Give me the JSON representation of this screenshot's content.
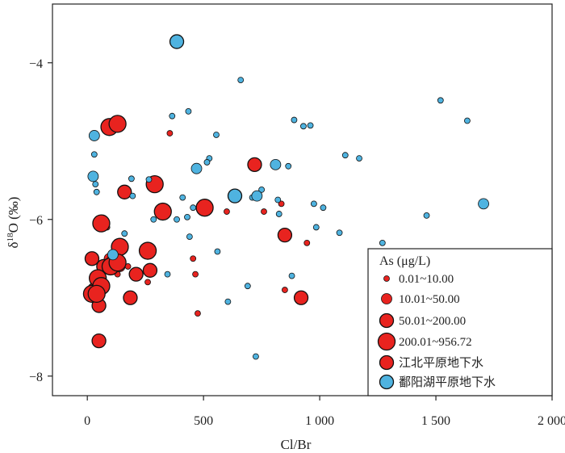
{
  "chart_data": {
    "type": "scatter",
    "xlabel": "Cl/Br",
    "ylabel": "δ18O (‰)",
    "xlim": [
      -150,
      2000
    ],
    "ylim": [
      -8.25,
      -3.25
    ],
    "y_inverted": false,
    "x_ticks": [
      0,
      500,
      1000,
      1500,
      2000
    ],
    "x_tick_labels": [
      "0",
      "500",
      "1 000",
      "1 500",
      "2 000"
    ],
    "y_ticks": [
      -4,
      -6,
      -8
    ],
    "y_tick_labels": [
      "−4",
      "−6",
      "−8"
    ],
    "grid": false,
    "legend": {
      "placement": "bottom-right",
      "title": "As (μg/L)",
      "size_classes": [
        {
          "label": "0.01~10.00",
          "size_class": 1
        },
        {
          "label": "10.01~50.00",
          "size_class": 2
        },
        {
          "label": "50.01~200.00",
          "size_class": 3
        },
        {
          "label": "200.01~956.72",
          "size_class": 4
        }
      ],
      "groups": [
        {
          "label": "江北平原地下水",
          "color": "#e8231f"
        },
        {
          "label": "鄱阳湖平原地下水",
          "color": "#4fb3e0"
        }
      ]
    },
    "series": [
      {
        "name": "江北平原地下水",
        "color": "#e8231f",
        "points": [
          [
            355,
            -4.9,
            1
          ],
          [
            475,
            -7.2,
            1
          ],
          [
            600,
            -5.9,
            1
          ],
          [
            850,
            -6.9,
            1
          ],
          [
            945,
            -6.3,
            1
          ],
          [
            465,
            -6.7,
            1
          ],
          [
            455,
            -6.5,
            1
          ],
          [
            175,
            -6.6,
            1
          ],
          [
            130,
            -6.7,
            1
          ],
          [
            760,
            -5.9,
            1
          ],
          [
            835,
            -5.8,
            1
          ],
          [
            85,
            -6.1,
            1
          ],
          [
            260,
            -6.8,
            1
          ],
          [
            95,
            -6.5,
            2
          ],
          [
            140,
            -6.6,
            2
          ],
          [
            185,
            -7.0,
            3
          ],
          [
            210,
            -6.7,
            3
          ],
          [
            50,
            -7.1,
            3
          ],
          [
            50,
            -7.55,
            3
          ],
          [
            20,
            -6.5,
            3
          ],
          [
            920,
            -7.0,
            3
          ],
          [
            850,
            -6.2,
            3
          ],
          [
            720,
            -5.3,
            3
          ],
          [
            160,
            -5.65,
            3
          ],
          [
            270,
            -6.65,
            3
          ],
          [
            70,
            -6.6,
            3
          ],
          [
            110,
            -6.55,
            3
          ],
          [
            30,
            -6.9,
            3
          ],
          [
            95,
            -4.82,
            4
          ],
          [
            130,
            -4.78,
            4
          ],
          [
            60,
            -6.05,
            4
          ],
          [
            140,
            -6.35,
            4
          ],
          [
            260,
            -6.4,
            4
          ],
          [
            290,
            -5.55,
            4
          ],
          [
            325,
            -5.9,
            4
          ],
          [
            505,
            -5.85,
            4
          ],
          [
            20,
            -6.95,
            4
          ],
          [
            45,
            -6.75,
            4
          ],
          [
            60,
            -6.85,
            4
          ],
          [
            40,
            -6.95,
            4
          ],
          [
            100,
            -6.6,
            4
          ],
          [
            130,
            -6.55,
            4
          ]
        ]
      },
      {
        "name": "鄱阳湖平原地下水",
        "color": "#4fb3e0",
        "points": [
          [
            660,
            -4.22,
            1
          ],
          [
            1520,
            -4.48,
            1
          ],
          [
            1635,
            -4.74,
            1
          ],
          [
            890,
            -4.73,
            1
          ],
          [
            930,
            -4.81,
            1
          ],
          [
            960,
            -4.8,
            1
          ],
          [
            555,
            -4.92,
            1
          ],
          [
            365,
            -4.68,
            1
          ],
          [
            435,
            -4.62,
            1
          ],
          [
            1110,
            -5.18,
            1
          ],
          [
            1170,
            -5.22,
            1
          ],
          [
            525,
            -5.22,
            1
          ],
          [
            515,
            -5.27,
            1
          ],
          [
            865,
            -5.32,
            1
          ],
          [
            190,
            -5.48,
            1
          ],
          [
            265,
            -5.49,
            1
          ],
          [
            30,
            -5.17,
            1
          ],
          [
            35,
            -5.55,
            1
          ],
          [
            40,
            -5.65,
            1
          ],
          [
            195,
            -5.7,
            1
          ],
          [
            410,
            -5.72,
            1
          ],
          [
            455,
            -5.85,
            1
          ],
          [
            710,
            -5.72,
            1
          ],
          [
            750,
            -5.62,
            1
          ],
          [
            820,
            -5.75,
            1
          ],
          [
            975,
            -5.8,
            1
          ],
          [
            1015,
            -5.85,
            1
          ],
          [
            825,
            -5.93,
            1
          ],
          [
            1460,
            -5.95,
            1
          ],
          [
            430,
            -5.97,
            1
          ],
          [
            385,
            -6.0,
            1
          ],
          [
            285,
            -6.0,
            1
          ],
          [
            985,
            -6.1,
            1
          ],
          [
            1085,
            -6.17,
            1
          ],
          [
            160,
            -6.18,
            1
          ],
          [
            440,
            -6.22,
            1
          ],
          [
            560,
            -6.41,
            1
          ],
          [
            1270,
            -6.3,
            1
          ],
          [
            345,
            -6.7,
            1
          ],
          [
            880,
            -6.72,
            1
          ],
          [
            690,
            -6.85,
            1
          ],
          [
            605,
            -7.05,
            1
          ],
          [
            725,
            -7.75,
            1
          ],
          [
            25,
            -5.45,
            2
          ],
          [
            470,
            -5.35,
            2
          ],
          [
            810,
            -5.3,
            2
          ],
          [
            730,
            -5.7,
            2
          ],
          [
            1705,
            -5.8,
            2
          ],
          [
            30,
            -4.93,
            2
          ],
          [
            110,
            -6.45,
            2
          ],
          [
            385,
            -3.73,
            3
          ],
          [
            635,
            -5.7,
            3
          ]
        ]
      }
    ]
  }
}
